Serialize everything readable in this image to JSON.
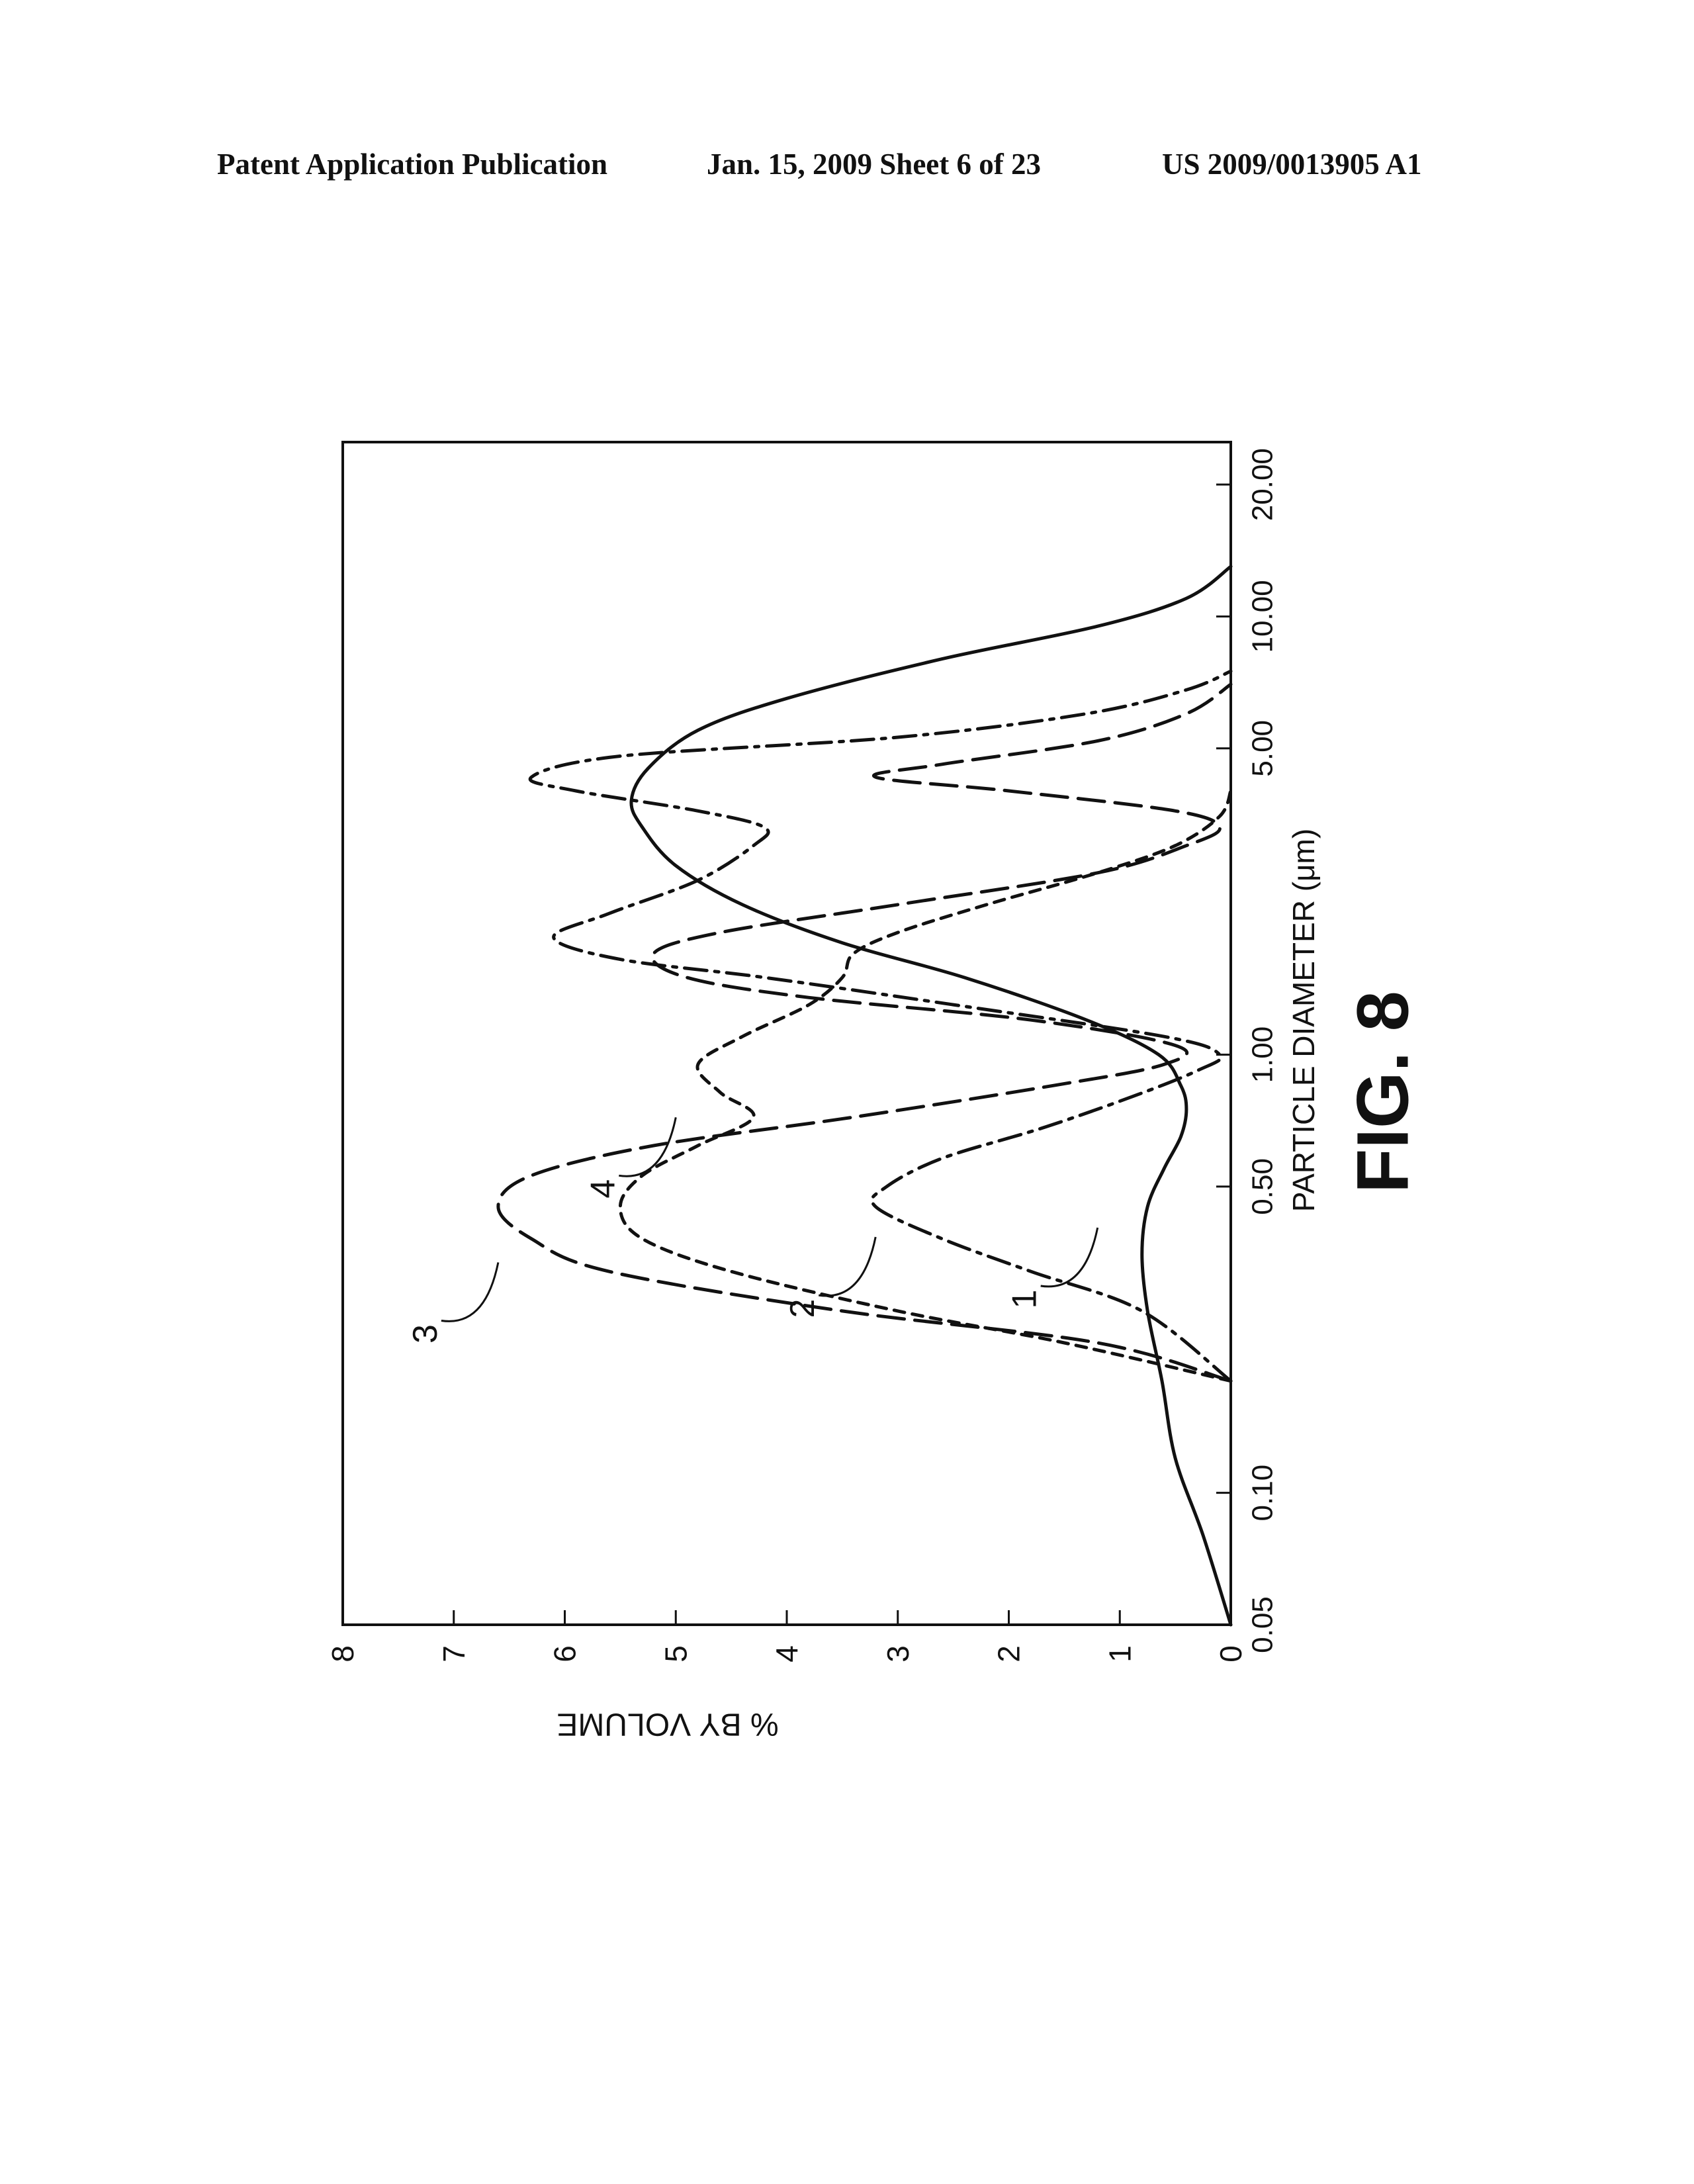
{
  "header": {
    "left": "Patent Application Publication",
    "middle": "Jan. 15, 2009  Sheet 6 of 23",
    "right": "US 2009/0013905 A1"
  },
  "figure": {
    "caption": "FIG. 8",
    "orientation": "rotated 90 degrees counter-clockwise on the page"
  },
  "chart_data": {
    "type": "line",
    "title": "",
    "xlabel": "PARTICLE DIAMETER (μm)",
    "ylabel": "% BY VOLUME",
    "x_scale": "log",
    "xlim": [
      0.05,
      25
    ],
    "ylim": [
      0,
      8
    ],
    "x_ticks": [
      {
        "value": 0.05,
        "label": "0.05"
      },
      {
        "value": 0.1,
        "label": "0.10"
      },
      {
        "value": 0.5,
        "label": "0.50"
      },
      {
        "value": 1.0,
        "label": "1.00"
      },
      {
        "value": 5.0,
        "label": "5.00"
      },
      {
        "value": 10.0,
        "label": "10.00"
      },
      {
        "value": 20.0,
        "label": "20.00"
      }
    ],
    "y_ticks": [
      {
        "value": 0,
        "label": "0"
      },
      {
        "value": 1,
        "label": "1"
      },
      {
        "value": 2,
        "label": "2"
      },
      {
        "value": 3,
        "label": "3"
      },
      {
        "value": 4,
        "label": "4"
      },
      {
        "value": 5,
        "label": "5"
      },
      {
        "value": 6,
        "label": "6"
      },
      {
        "value": 7,
        "label": "7"
      },
      {
        "value": 8,
        "label": "8"
      }
    ],
    "grid": false,
    "legend": "none (curves labeled inline)",
    "series": [
      {
        "label": "1",
        "line_style": "solid",
        "label_at": [
          0.42,
          1.2
        ],
        "points": [
          [
            0.05,
            0.0
          ],
          [
            0.08,
            0.25
          ],
          [
            0.12,
            0.5
          ],
          [
            0.18,
            0.62
          ],
          [
            0.26,
            0.75
          ],
          [
            0.35,
            0.8
          ],
          [
            0.45,
            0.75
          ],
          [
            0.55,
            0.6
          ],
          [
            0.65,
            0.45
          ],
          [
            0.75,
            0.4
          ],
          [
            0.85,
            0.45
          ],
          [
            1.0,
            0.65
          ],
          [
            1.2,
            1.3
          ],
          [
            1.5,
            2.4
          ],
          [
            1.8,
            3.5
          ],
          [
            2.2,
            4.4
          ],
          [
            2.7,
            5.0
          ],
          [
            3.3,
            5.3
          ],
          [
            3.8,
            5.4
          ],
          [
            4.5,
            5.25
          ],
          [
            5.5,
            4.8
          ],
          [
            6.5,
            4.0
          ],
          [
            8.0,
            2.6
          ],
          [
            9.5,
            1.2
          ],
          [
            11.0,
            0.4
          ],
          [
            13.0,
            0.0
          ]
        ]
      },
      {
        "label": "2",
        "line_style": "dash-dot",
        "label_at": [
          0.4,
          3.2
        ],
        "points": [
          [
            0.18,
            0.0
          ],
          [
            0.26,
            0.8
          ],
          [
            0.32,
            1.8
          ],
          [
            0.38,
            2.6
          ],
          [
            0.45,
            3.2
          ],
          [
            0.5,
            3.1
          ],
          [
            0.58,
            2.6
          ],
          [
            0.68,
            1.7
          ],
          [
            0.8,
            0.9
          ],
          [
            0.92,
            0.3
          ],
          [
            1.0,
            0.1
          ],
          [
            1.1,
            0.6
          ],
          [
            1.3,
            2.5
          ],
          [
            1.5,
            4.2
          ],
          [
            1.65,
            5.5
          ],
          [
            1.85,
            6.1
          ],
          [
            2.1,
            5.6
          ],
          [
            2.5,
            4.8
          ],
          [
            3.0,
            4.3
          ],
          [
            3.3,
            4.2
          ],
          [
            3.6,
            4.8
          ],
          [
            4.0,
            5.9
          ],
          [
            4.3,
            6.3
          ],
          [
            4.8,
            5.5
          ],
          [
            5.3,
            3.0
          ],
          [
            6.0,
            1.3
          ],
          [
            6.8,
            0.4
          ],
          [
            7.5,
            0.0
          ]
        ]
      },
      {
        "label": "3",
        "line_style": "long dash",
        "label_at": [
          0.35,
          6.6
        ],
        "points": [
          [
            0.18,
            0.0
          ],
          [
            0.22,
            1.2
          ],
          [
            0.26,
            3.5
          ],
          [
            0.32,
            5.6
          ],
          [
            0.38,
            6.3
          ],
          [
            0.45,
            6.6
          ],
          [
            0.53,
            6.3
          ],
          [
            0.62,
            5.2
          ],
          [
            0.72,
            3.4
          ],
          [
            0.85,
            1.6
          ],
          [
            0.95,
            0.6
          ],
          [
            1.05,
            0.5
          ],
          [
            1.2,
            1.8
          ],
          [
            1.35,
            3.8
          ],
          [
            1.5,
            4.9
          ],
          [
            1.7,
            5.2
          ],
          [
            1.9,
            4.6
          ],
          [
            2.2,
            3.0
          ],
          [
            2.6,
            1.2
          ],
          [
            3.0,
            0.4
          ],
          [
            3.3,
            0.1
          ],
          [
            3.6,
            0.5
          ],
          [
            4.0,
            2.0
          ],
          [
            4.3,
            3.2
          ],
          [
            4.6,
            2.6
          ],
          [
            5.2,
            1.2
          ],
          [
            6.0,
            0.4
          ],
          [
            7.0,
            0.0
          ]
        ]
      },
      {
        "label": "4",
        "line_style": "short dash",
        "label_at": [
          0.75,
          5.0
        ],
        "points": [
          [
            0.18,
            0.0
          ],
          [
            0.22,
            1.5
          ],
          [
            0.26,
            3.0
          ],
          [
            0.32,
            4.5
          ],
          [
            0.38,
            5.3
          ],
          [
            0.45,
            5.5
          ],
          [
            0.53,
            5.3
          ],
          [
            0.62,
            4.8
          ],
          [
            0.72,
            4.3
          ],
          [
            0.82,
            4.6
          ],
          [
            0.95,
            4.8
          ],
          [
            1.1,
            4.4
          ],
          [
            1.3,
            3.8
          ],
          [
            1.5,
            3.5
          ],
          [
            1.7,
            3.4
          ],
          [
            1.9,
            3.0
          ],
          [
            2.2,
            2.2
          ],
          [
            2.6,
            1.2
          ],
          [
            3.0,
            0.5
          ],
          [
            3.5,
            0.1
          ],
          [
            4.0,
            0.0
          ]
        ]
      }
    ]
  }
}
